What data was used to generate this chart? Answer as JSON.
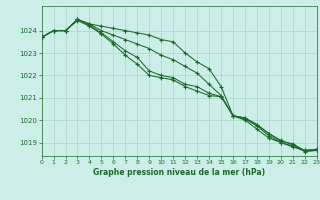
{
  "title": "Graphe pression niveau de la mer (hPa)",
  "bg_color": "#cceee8",
  "grid_color": "#aad4cc",
  "line_color": "#1a6b2a",
  "xlim": [
    0,
    23
  ],
  "ylim": [
    1018.4,
    1025.1
  ],
  "yticks": [
    1019,
    1020,
    1021,
    1022,
    1023,
    1024
  ],
  "xticks": [
    0,
    1,
    2,
    3,
    4,
    5,
    6,
    7,
    8,
    9,
    10,
    11,
    12,
    13,
    14,
    15,
    16,
    17,
    18,
    19,
    20,
    21,
    22,
    23
  ],
  "series": [
    [
      1023.7,
      1024.0,
      1024.0,
      1024.5,
      1024.3,
      1024.2,
      1024.1,
      1024.0,
      1023.9,
      1023.8,
      1023.6,
      1023.5,
      1023.0,
      1022.6,
      1022.3,
      1021.5,
      1020.2,
      1020.1,
      1019.8,
      1019.4,
      1019.1,
      1018.9,
      1018.65,
      1018.7
    ],
    [
      1023.7,
      1024.0,
      1024.0,
      1024.5,
      1024.25,
      1023.9,
      1023.5,
      1023.1,
      1022.8,
      1022.2,
      1022.0,
      1021.9,
      1021.6,
      1021.5,
      1021.2,
      1021.05,
      1020.2,
      1020.1,
      1019.8,
      1019.4,
      1019.05,
      1018.95,
      1018.62,
      1018.65
    ],
    [
      1023.7,
      1024.0,
      1024.0,
      1024.45,
      1024.2,
      1023.85,
      1023.4,
      1022.9,
      1022.5,
      1022.0,
      1021.9,
      1021.8,
      1021.5,
      1021.3,
      1021.1,
      1021.05,
      1020.2,
      1020.05,
      1019.75,
      1019.3,
      1019.0,
      1018.85,
      1018.6,
      1018.65
    ],
    [
      1023.7,
      1024.0,
      1024.0,
      1024.5,
      1024.3,
      1024.0,
      1023.8,
      1023.6,
      1023.4,
      1023.2,
      1022.9,
      1022.7,
      1022.4,
      1022.1,
      1021.6,
      1021.1,
      1020.2,
      1020.0,
      1019.6,
      1019.2,
      1019.0,
      1018.8,
      1018.65,
      1018.7
    ]
  ]
}
